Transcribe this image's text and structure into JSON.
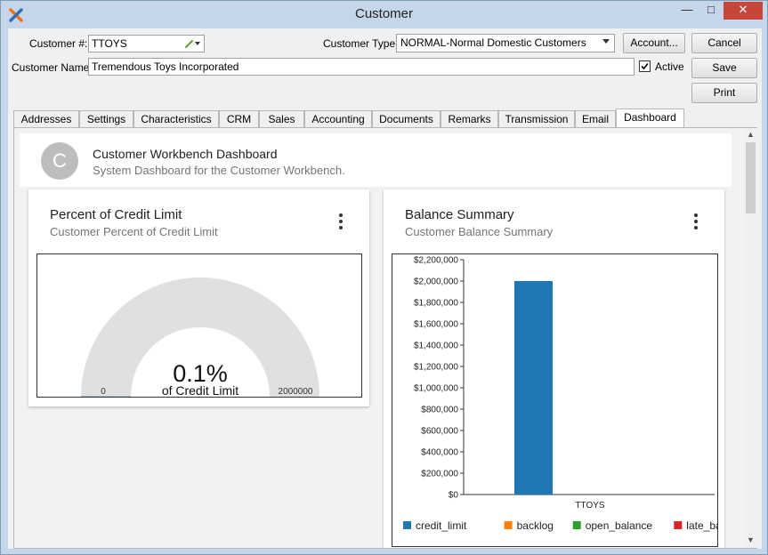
{
  "window": {
    "title": "Customer"
  },
  "form": {
    "customer_number_label": "Customer #:",
    "customer_number_value": "TTOYS",
    "customer_type_label": "Customer Type:",
    "customer_type_value": "NORMAL-Normal Domestic Customers",
    "customer_name_label": "Customer Name:",
    "customer_name_value": "Tremendous Toys Incorporated",
    "active_label": "Active",
    "active_checked": true
  },
  "buttons": {
    "account": "Account...",
    "cancel": "Cancel",
    "save": "Save",
    "print": "Print"
  },
  "tabs": [
    {
      "label": "Addresses"
    },
    {
      "label": "Settings"
    },
    {
      "label": "Characteristics"
    },
    {
      "label": "CRM"
    },
    {
      "label": "Sales"
    },
    {
      "label": "Accounting"
    },
    {
      "label": "Documents"
    },
    {
      "label": "Remarks"
    },
    {
      "label": "Transmission"
    },
    {
      "label": "Email"
    },
    {
      "label": "Dashboard",
      "active": true
    }
  ],
  "dashboard": {
    "avatar_letter": "C",
    "title": "Customer Workbench Dashboard",
    "subtitle": "System Dashboard for the Customer Workbench."
  },
  "cards": {
    "credit": {
      "title": "Percent of Credit Limit",
      "subtitle": "Customer Percent of Credit Limit"
    },
    "balance": {
      "title": "Balance Summary",
      "subtitle": "Customer Balance Summary"
    }
  },
  "chart_data": [
    {
      "type": "gauge",
      "value_text": "0.1%",
      "value_caption": "of Credit Limit",
      "value_percent": 0.1,
      "min_label": "0",
      "max_label": "2000000",
      "range": [
        0,
        2000000
      ],
      "colors": {
        "track": "#e0e0e0",
        "fill": "#1f77b4"
      }
    },
    {
      "type": "bar",
      "categories": [
        "TTOYS"
      ],
      "series": [
        {
          "name": "credit_limit",
          "values": [
            2000000
          ],
          "color": "#1f77b4"
        },
        {
          "name": "backlog",
          "values": [
            0
          ],
          "color": "#ff7f0e"
        },
        {
          "name": "open_balance",
          "values": [
            0
          ],
          "color": "#2ca02c"
        },
        {
          "name": "late_balance",
          "values": [
            0
          ],
          "color": "#d62728"
        }
      ],
      "ylim": [
        0,
        2200000
      ],
      "yticks": [
        "$0",
        "$200,000",
        "$400,000",
        "$600,000",
        "$800,000",
        "$1,000,000",
        "$1,200,000",
        "$1,400,000",
        "$1,600,000",
        "$1,800,000",
        "$2,000,000",
        "$2,200,000"
      ],
      "legend": "bottom"
    }
  ]
}
